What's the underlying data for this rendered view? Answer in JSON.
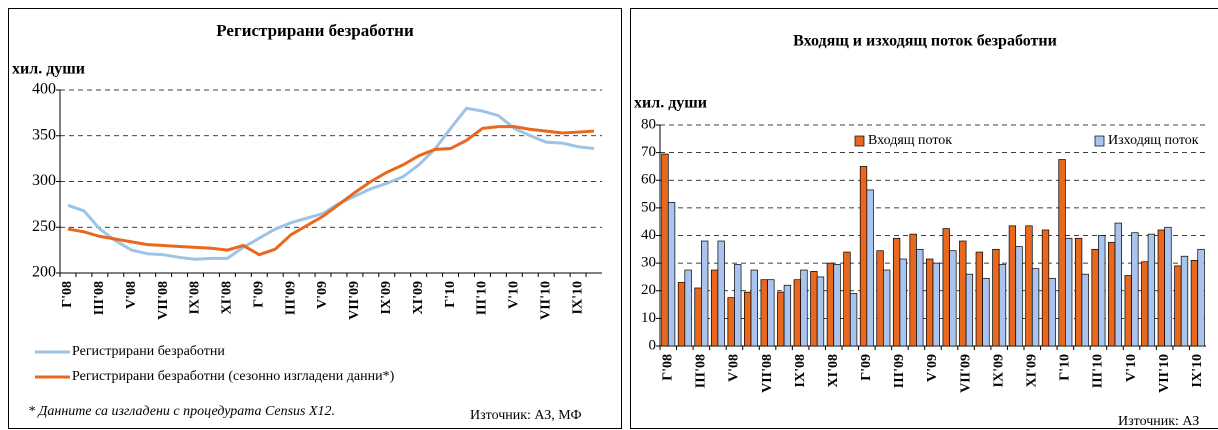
{
  "chart_data": [
    {
      "type": "line",
      "title": "Регистрирани безработни",
      "y_label": "хил. души",
      "categories": [
        "Г'08",
        null,
        "ІІІ'08",
        null,
        "V'08",
        null,
        "VІІ'08",
        null,
        "ІХ'08",
        null,
        "ХІ'08",
        null,
        "Г'09",
        null,
        "ІІІ'09",
        null,
        "V'09",
        null,
        "VІІ'09",
        null,
        "ІХ'09",
        null,
        "ХІ'09",
        null,
        "Г'10",
        null,
        "ІІІ'10",
        null,
        "V'10",
        null,
        "VІІ'10",
        null,
        "ІХ'10",
        null
      ],
      "series": [
        {
          "name": "Регистрирани безработни",
          "color": "#9dc3e6",
          "values": [
            274,
            268,
            248,
            235,
            225,
            221,
            220,
            217,
            215,
            216,
            216,
            228,
            238,
            248,
            255,
            260,
            265,
            276,
            284,
            292,
            298,
            305,
            318,
            335,
            358,
            380,
            377,
            372,
            358,
            350,
            343,
            342,
            338,
            336
          ]
        },
        {
          "name": "Регистрирани безработни (сезонно изгладени данни*)",
          "color": "#e8681f",
          "values": [
            248,
            245,
            240,
            237,
            234,
            231,
            230,
            229,
            228,
            227,
            225,
            230,
            220,
            226,
            242,
            252,
            262,
            275,
            288,
            300,
            310,
            318,
            328,
            335,
            336,
            345,
            358,
            360,
            360,
            357,
            355,
            353,
            354,
            355
          ]
        }
      ],
      "ylim": [
        200,
        400
      ],
      "yticks": [
        200,
        250,
        300,
        350,
        400
      ],
      "grid": true,
      "footnote": "* Данните са изгладени с процедурата Census X12.",
      "source": "Източник: АЗ, МФ"
    },
    {
      "type": "bar",
      "title": "Входящ и изходящ поток безработни",
      "y_label": "хил. души",
      "categories": [
        "Г'08",
        null,
        "ІІІ'08",
        null,
        "V'08",
        null,
        "VІІ'08",
        null,
        "ІХ'08",
        null,
        "ХІ'08",
        null,
        "Г'09",
        null,
        "ІІІ'09",
        null,
        "V'09",
        null,
        "VІІ'09",
        null,
        "ІХ'09",
        null,
        "ХІ'09",
        null,
        "Г'10",
        null,
        "ІІІ'10",
        null,
        "V'10",
        null,
        "VІІ'10",
        null,
        "ІХ'10"
      ],
      "series": [
        {
          "name": "Входящ поток",
          "color": "#e8681f",
          "values": [
            69.5,
            23,
            21,
            27.5,
            17.5,
            19.5,
            24,
            19.5,
            24,
            27,
            30,
            34,
            65,
            34.5,
            39,
            40.5,
            31.5,
            42.5,
            38,
            34,
            35,
            43.5,
            43.5,
            42,
            67.5,
            39,
            35,
            37.5,
            25.5,
            30.5,
            42,
            29,
            31
          ]
        },
        {
          "name": "Изходящ поток",
          "color": "#a9c4ee",
          "values": [
            52,
            27.5,
            38,
            38,
            29.5,
            27.5,
            24,
            22,
            27.5,
            25,
            29.5,
            19,
            56.5,
            27.5,
            31.5,
            35,
            30,
            34.5,
            26,
            24.5,
            29.5,
            36,
            28,
            24.5,
            39,
            26,
            40,
            44.5,
            41,
            40.5,
            43,
            32.5,
            35
          ]
        }
      ],
      "ylim": [
        0,
        80
      ],
      "yticks": [
        0,
        10,
        20,
        30,
        40,
        50,
        60,
        70,
        80
      ],
      "grid": true,
      "legend": "top",
      "source": "Източник: АЗ"
    }
  ]
}
